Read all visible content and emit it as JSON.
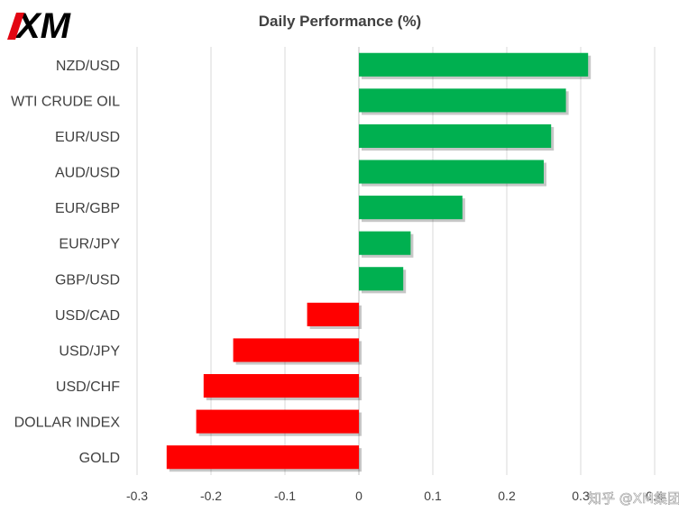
{
  "logo": {
    "text": "XM",
    "color": "#000000",
    "accent": "#e30613"
  },
  "watermark": {
    "text": "知乎 @XM集团"
  },
  "colors": {
    "positive": "#00b050",
    "negative": "#ff0000",
    "grid": "#d9d9d9",
    "text": "#404040"
  },
  "chart_data": {
    "type": "bar",
    "orientation": "horizontal",
    "title": "Daily Performance (%)",
    "categories": [
      "NZD/USD",
      "WTI CRUDE OIL",
      "EUR/USD",
      "AUD/USD",
      "EUR/GBP",
      "EUR/JPY",
      "GBP/USD",
      "USD/CAD",
      "USD/JPY",
      "USD/CHF",
      "DOLLAR INDEX",
      "GOLD"
    ],
    "values": [
      0.31,
      0.28,
      0.26,
      0.25,
      0.14,
      0.07,
      0.06,
      -0.07,
      -0.17,
      -0.21,
      -0.22,
      -0.26
    ],
    "xlim": [
      -0.3,
      0.4
    ],
    "xticks": [
      -0.3,
      -0.2,
      -0.1,
      0,
      0.1,
      0.2,
      0.3,
      0.4
    ],
    "xtick_labels": [
      "-0.3",
      "-0.2",
      "-0.1",
      "0",
      "0.1",
      "0.2",
      "0.3",
      "0.4"
    ],
    "grid": true,
    "legend": "none"
  }
}
